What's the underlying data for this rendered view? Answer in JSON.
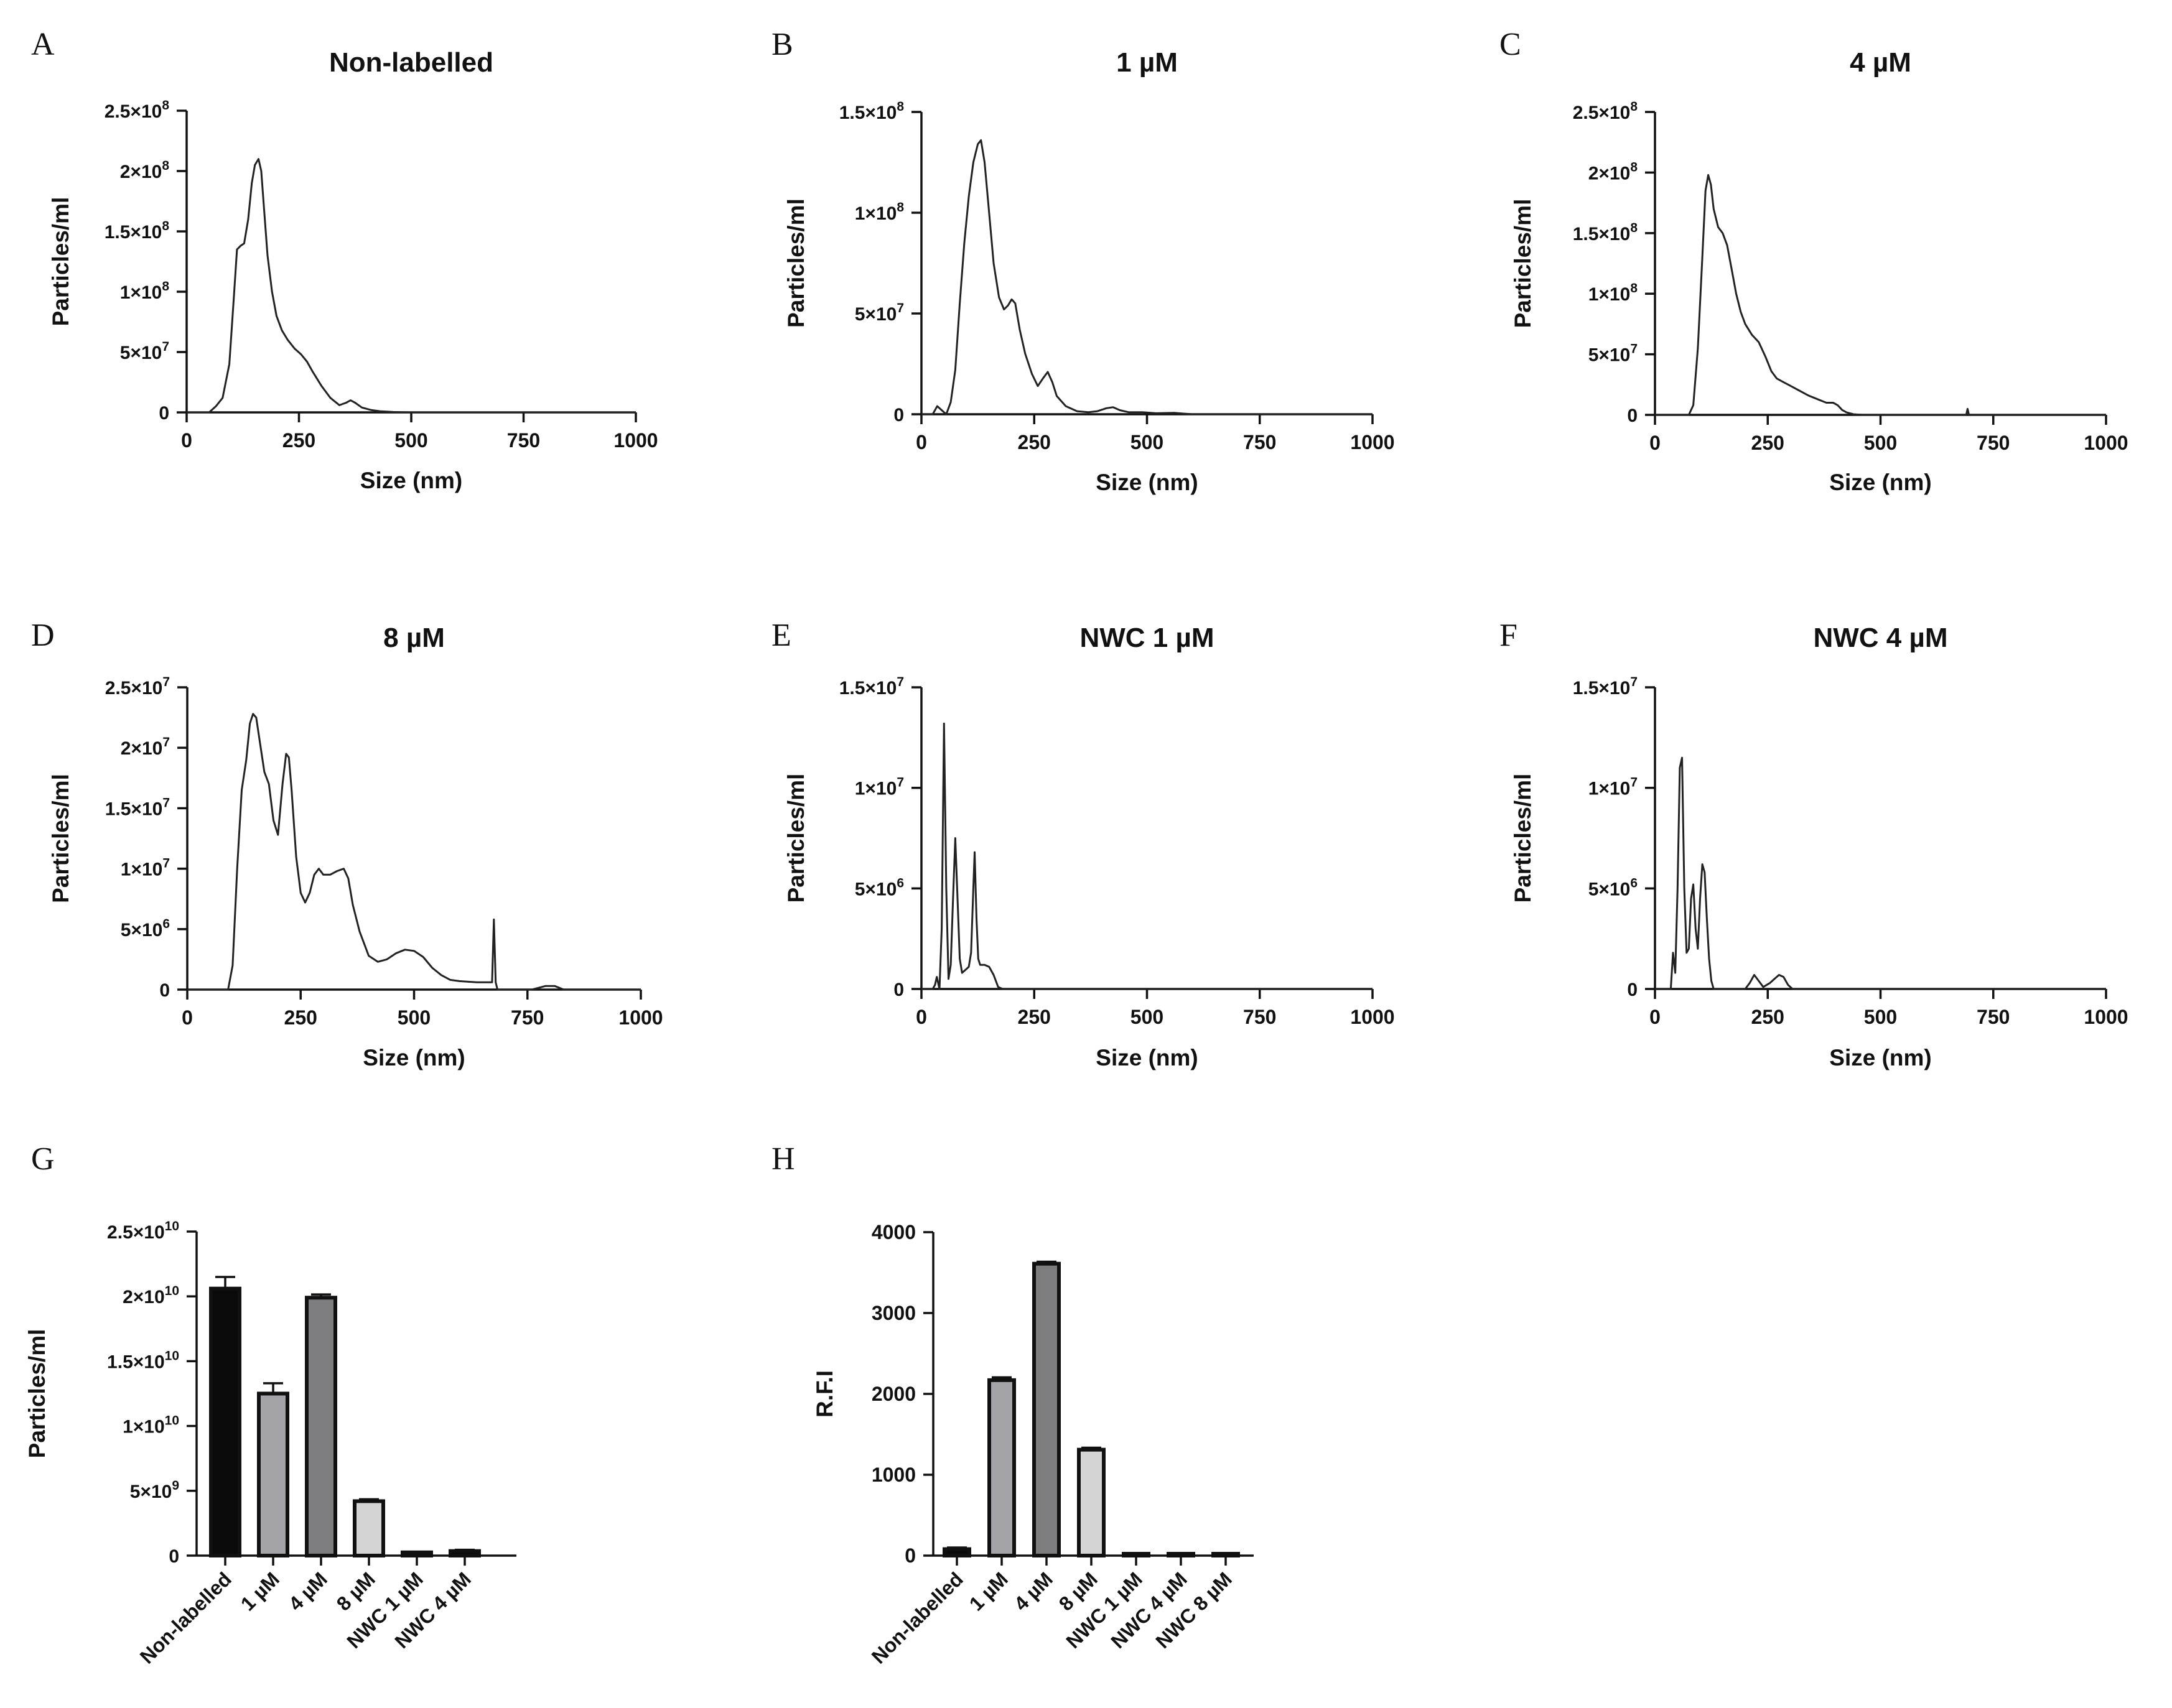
{
  "figure": {
    "panel_letters": [
      "A",
      "B",
      "C",
      "D",
      "E",
      "F",
      "G",
      "H"
    ]
  },
  "chart_data": [
    {
      "panel": "A",
      "type": "line",
      "title": "Non-labelled",
      "xlabel": "Size (nm)",
      "ylabel": "Particles/ml",
      "xlim": [
        0,
        1000
      ],
      "ylim": [
        0,
        250000000
      ],
      "xticks": [
        0,
        250,
        500,
        750,
        1000
      ],
      "yticks": [
        {
          "value": 0,
          "mant": "0",
          "exp": ""
        },
        {
          "value": 50000000,
          "mant": "5×10",
          "exp": "7"
        },
        {
          "value": 100000000,
          "mant": "1×10",
          "exp": "8"
        },
        {
          "value": 150000000,
          "mant": "1.5×10",
          "exp": "8"
        },
        {
          "value": 200000000,
          "mant": "2×10",
          "exp": "8"
        },
        {
          "value": 250000000,
          "mant": "2.5×10",
          "exp": "8"
        }
      ],
      "x": [
        0,
        50,
        65,
        80,
        95,
        105,
        112,
        120,
        128,
        137,
        145,
        152,
        160,
        166,
        172,
        180,
        190,
        200,
        212,
        225,
        240,
        255,
        268,
        280,
        300,
        320,
        340,
        355,
        365,
        375,
        390,
        410,
        430,
        460,
        500,
        550,
        600,
        1000
      ],
      "y": [
        0,
        0,
        5000000,
        12000000,
        40000000,
        95000000,
        135000000,
        138000000,
        140000000,
        160000000,
        190000000,
        205000000,
        210000000,
        200000000,
        170000000,
        130000000,
        100000000,
        80000000,
        68000000,
        60000000,
        53000000,
        48000000,
        42000000,
        34000000,
        22000000,
        12000000,
        6000000,
        8000000,
        10000000,
        8000000,
        4000000,
        2000000,
        1000000,
        300000,
        0,
        0,
        0,
        0
      ]
    },
    {
      "panel": "B",
      "type": "line",
      "title": "1 µM",
      "xlabel": "Size (nm)",
      "ylabel": "Particles/ml",
      "xlim": [
        0,
        1000
      ],
      "ylim": [
        0,
        150000000
      ],
      "xticks": [
        0,
        250,
        500,
        750,
        1000
      ],
      "yticks": [
        {
          "value": 0,
          "mant": "0",
          "exp": ""
        },
        {
          "value": 50000000,
          "mant": "5×10",
          "exp": "7"
        },
        {
          "value": 100000000,
          "mant": "1×10",
          "exp": "8"
        },
        {
          "value": 150000000,
          "mant": "1.5×10",
          "exp": "8"
        }
      ],
      "x": [
        0,
        25,
        35,
        45,
        55,
        65,
        75,
        85,
        95,
        105,
        115,
        125,
        132,
        140,
        150,
        160,
        172,
        183,
        192,
        200,
        208,
        218,
        230,
        245,
        258,
        270,
        280,
        290,
        300,
        320,
        345,
        370,
        390,
        410,
        425,
        440,
        460,
        490,
        520,
        560,
        600,
        1000
      ],
      "y": [
        0,
        0,
        4000000,
        2000000,
        0,
        6000000,
        22000000,
        55000000,
        85000000,
        108000000,
        125000000,
        134000000,
        136000000,
        125000000,
        100000000,
        75000000,
        58000000,
        52000000,
        54000000,
        57000000,
        55000000,
        42000000,
        30000000,
        20000000,
        14000000,
        18000000,
        21000000,
        16000000,
        9000000,
        4000000,
        1500000,
        1000000,
        1500000,
        3000000,
        3500000,
        2000000,
        1000000,
        1000000,
        500000,
        700000,
        0,
        0
      ]
    },
    {
      "panel": "C",
      "type": "line",
      "title": "4 µM",
      "xlabel": "Size (nm)",
      "ylabel": "Particles/ml",
      "xlim": [
        0,
        1000
      ],
      "ylim": [
        0,
        250000000
      ],
      "xticks": [
        0,
        250,
        500,
        750,
        1000
      ],
      "yticks": [
        {
          "value": 0,
          "mant": "0",
          "exp": ""
        },
        {
          "value": 50000000,
          "mant": "5×10",
          "exp": "7"
        },
        {
          "value": 100000000,
          "mant": "1×10",
          "exp": "8"
        },
        {
          "value": 150000000,
          "mant": "1.5×10",
          "exp": "8"
        },
        {
          "value": 200000000,
          "mant": "2×10",
          "exp": "8"
        },
        {
          "value": 250000000,
          "mant": "2.5×10",
          "exp": "8"
        }
      ],
      "x": [
        0,
        75,
        85,
        95,
        105,
        112,
        118,
        124,
        130,
        140,
        150,
        160,
        170,
        180,
        190,
        200,
        215,
        230,
        245,
        258,
        270,
        285,
        300,
        320,
        340,
        360,
        380,
        395,
        405,
        415,
        425,
        440,
        460,
        500,
        690,
        693,
        696,
        700,
        1000
      ],
      "y": [
        0,
        0,
        8000000,
        55000000,
        130000000,
        185000000,
        198000000,
        190000000,
        170000000,
        155000000,
        150000000,
        140000000,
        120000000,
        100000000,
        85000000,
        75000000,
        66000000,
        60000000,
        48000000,
        36000000,
        30000000,
        27000000,
        24000000,
        20000000,
        16000000,
        13000000,
        10000000,
        10000000,
        8000000,
        4000000,
        2000000,
        500000,
        0,
        0,
        0,
        5000000,
        0,
        0,
        0
      ]
    },
    {
      "panel": "D",
      "type": "line",
      "title": "8 µM",
      "xlabel": "Size (nm)",
      "ylabel": "Particles/ml",
      "xlim": [
        0,
        1000
      ],
      "ylim": [
        0,
        25000000
      ],
      "xticks": [
        0,
        250,
        500,
        750,
        1000
      ],
      "yticks": [
        {
          "value": 0,
          "mant": "0",
          "exp": ""
        },
        {
          "value": 5000000,
          "mant": "5×10",
          "exp": "6"
        },
        {
          "value": 10000000,
          "mant": "1×10",
          "exp": "7"
        },
        {
          "value": 15000000,
          "mant": "1.5×10",
          "exp": "7"
        },
        {
          "value": 20000000,
          "mant": "2×10",
          "exp": "7"
        },
        {
          "value": 25000000,
          "mant": "2.5×10",
          "exp": "7"
        }
      ],
      "x": [
        0,
        90,
        100,
        110,
        120,
        130,
        138,
        145,
        152,
        160,
        170,
        180,
        190,
        200,
        210,
        218,
        224,
        230,
        240,
        250,
        260,
        270,
        280,
        290,
        300,
        315,
        330,
        345,
        355,
        365,
        380,
        400,
        420,
        440,
        460,
        480,
        500,
        520,
        540,
        560,
        580,
        600,
        620,
        640,
        660,
        672,
        676,
        680,
        684,
        690,
        720,
        760,
        790,
        810,
        830,
        860,
        1000
      ],
      "y": [
        0,
        0,
        2000000,
        10000000,
        16500000,
        19000000,
        22000000,
        22800000,
        22500000,
        20500000,
        18000000,
        17000000,
        14000000,
        12800000,
        17000000,
        19500000,
        19200000,
        16500000,
        11000000,
        8000000,
        7200000,
        8000000,
        9500000,
        10000000,
        9500000,
        9500000,
        9800000,
        10000000,
        9200000,
        7000000,
        4800000,
        2800000,
        2300000,
        2500000,
        3000000,
        3300000,
        3200000,
        2700000,
        1800000,
        1200000,
        800000,
        700000,
        650000,
        600000,
        600000,
        600000,
        5800000,
        600000,
        0,
        0,
        0,
        0,
        300000,
        300000,
        0,
        0,
        0
      ]
    },
    {
      "panel": "E",
      "type": "line",
      "title": "NWC 1 µM",
      "xlabel": "Size (nm)",
      "ylabel": "Particles/ml",
      "xlim": [
        0,
        1000
      ],
      "ylim": [
        0,
        15000000
      ],
      "xticks": [
        0,
        250,
        500,
        750,
        1000
      ],
      "yticks": [
        {
          "value": 0,
          "mant": "0",
          "exp": ""
        },
        {
          "value": 5000000,
          "mant": "5×10",
          "exp": "6"
        },
        {
          "value": 10000000,
          "mant": "1×10",
          "exp": "7"
        },
        {
          "value": 15000000,
          "mant": "1.5×10",
          "exp": "7"
        }
      ],
      "x": [
        0,
        25,
        30,
        34,
        40,
        45,
        50,
        55,
        60,
        65,
        70,
        75,
        80,
        85,
        90,
        95,
        100,
        105,
        110,
        115,
        118,
        122,
        126,
        130,
        140,
        150,
        160,
        170,
        180,
        1000
      ],
      "y": [
        0,
        0,
        200000,
        600000,
        0,
        3000000,
        13200000,
        5000000,
        500000,
        1200000,
        4500000,
        7500000,
        4500000,
        1500000,
        800000,
        900000,
        1000000,
        1100000,
        1800000,
        5000000,
        6800000,
        3500000,
        1500000,
        1200000,
        1200000,
        1100000,
        700000,
        100000,
        0,
        0
      ]
    },
    {
      "panel": "F",
      "type": "line",
      "title": "NWC 4 µM",
      "xlabel": "Size (nm)",
      "ylabel": "Particles/ml",
      "xlim": [
        0,
        1000
      ],
      "ylim": [
        0,
        15000000
      ],
      "xticks": [
        0,
        250,
        500,
        750,
        1000
      ],
      "yticks": [
        {
          "value": 0,
          "mant": "0",
          "exp": ""
        },
        {
          "value": 5000000,
          "mant": "5×10",
          "exp": "6"
        },
        {
          "value": 10000000,
          "mant": "1×10",
          "exp": "7"
        },
        {
          "value": 15000000,
          "mant": "1.5×10",
          "exp": "7"
        }
      ],
      "x": [
        0,
        35,
        40,
        45,
        50,
        55,
        60,
        65,
        70,
        75,
        80,
        85,
        90,
        95,
        100,
        105,
        110,
        115,
        120,
        125,
        130,
        140,
        160,
        200,
        210,
        220,
        230,
        240,
        255,
        265,
        275,
        285,
        295,
        305,
        330,
        1000
      ],
      "y": [
        0,
        0,
        1800000,
        800000,
        5000000,
        11000000,
        11500000,
        5000000,
        1800000,
        2000000,
        4500000,
        5200000,
        3000000,
        2000000,
        4500000,
        6200000,
        5800000,
        3500000,
        1500000,
        400000,
        0,
        0,
        0,
        0,
        300000,
        700000,
        400000,
        100000,
        300000,
        500000,
        700000,
        600000,
        200000,
        0,
        0,
        0
      ]
    },
    {
      "panel": "G",
      "type": "bar",
      "xlabel": "",
      "ylabel": "Particles/ml",
      "ylim": [
        0,
        25000000000
      ],
      "yticks": [
        {
          "value": 0,
          "mant": "0",
          "exp": ""
        },
        {
          "value": 5000000000,
          "mant": "5×10",
          "exp": "9"
        },
        {
          "value": 10000000000,
          "mant": "1×10",
          "exp": "10"
        },
        {
          "value": 15000000000,
          "mant": "1.5×10",
          "exp": "10"
        },
        {
          "value": 20000000000,
          "mant": "2×10",
          "exp": "10"
        },
        {
          "value": 25000000000,
          "mant": "2.5×10",
          "exp": "10"
        }
      ],
      "categories": [
        "Non-labelled",
        "1 µM",
        "4 µM",
        "8 µM",
        "NWC 1 µM",
        "NWC 4 µM"
      ],
      "values": [
        20600000000,
        12500000000,
        19900000000,
        4200000000,
        250000000,
        350000000
      ],
      "errors": [
        900000000,
        800000000,
        250000000,
        150000000,
        50000000,
        100000000
      ],
      "colors": [
        "#0a0a0a",
        "#a3a3a8",
        "#7d7d80",
        "#d4d4d4",
        "#0a0a0a",
        "#0a0a0a"
      ]
    },
    {
      "panel": "H",
      "type": "bar",
      "xlabel": "",
      "ylabel": "R.F.I",
      "ylim": [
        0,
        4000
      ],
      "yticks": [
        {
          "value": 0,
          "mant": "0",
          "exp": ""
        },
        {
          "value": 1000,
          "mant": "1000",
          "exp": ""
        },
        {
          "value": 2000,
          "mant": "2000",
          "exp": ""
        },
        {
          "value": 3000,
          "mant": "3000",
          "exp": ""
        },
        {
          "value": 4000,
          "mant": "4000",
          "exp": ""
        }
      ],
      "categories": [
        "Non-labelled",
        "1 µM",
        "4 µM",
        "8 µM",
        "NWC 1 µM",
        "NWC 4 µM",
        "NWC 8 µM"
      ],
      "values": [
        80,
        2170,
        3610,
        1310,
        3,
        3,
        5
      ],
      "errors": [
        20,
        35,
        25,
        25,
        2,
        2,
        2
      ],
      "colors": [
        "#0a0a0a",
        "#a3a3a8",
        "#7d7d80",
        "#d4d4d4",
        "#0a0a0a",
        "#0a0a0a",
        "#0a0a0a"
      ]
    }
  ]
}
